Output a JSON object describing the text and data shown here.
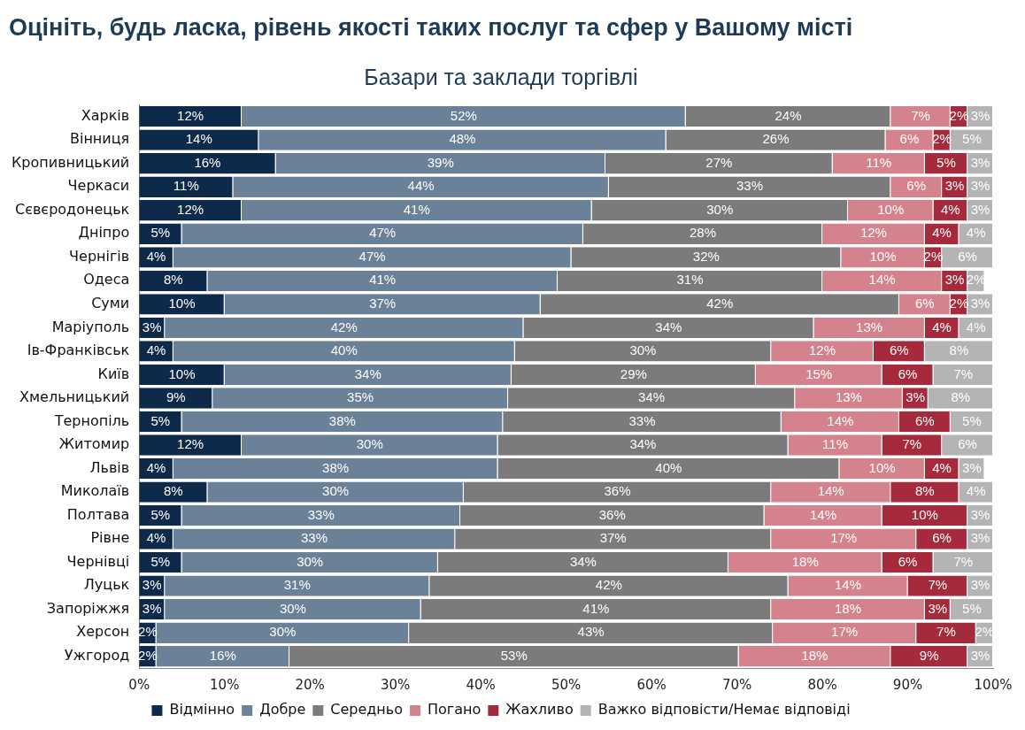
{
  "chart_data": {
    "type": "bar",
    "orientation": "horizontal",
    "stacked": true,
    "title": "Оцініть, будь ласка, рівень якості таких послуг та сфер у Вашому місті",
    "subtitle": "Базари та заклади торгівлі",
    "categories": [
      "Харків",
      "Вінниця",
      "Кропивницький",
      "Черкаси",
      "Сєвєродонецьк",
      "Дніпро",
      "Чернігів",
      "Одеса",
      "Суми",
      "Маріуполь",
      "Ів-Франківськ",
      "Київ",
      "Хмельницький",
      "Тернопіль",
      "Житомир",
      "Львів",
      "Миколаїв",
      "Полтава",
      "Рівне",
      "Чернівці",
      "Луцьк",
      "Запоріжжя",
      "Херсон",
      "Ужгород"
    ],
    "series": [
      {
        "name": "Відмінно",
        "color": "#0e2a4b",
        "values": [
          12,
          14,
          16,
          11,
          12,
          5,
          4,
          8,
          10,
          3,
          4,
          10,
          8.6,
          5,
          12,
          4,
          8,
          5,
          4,
          5,
          3,
          3,
          2,
          2
        ],
        "value_labels": [
          "12%",
          "14%",
          "16%",
          "11%",
          "12%",
          "5%",
          "4%",
          "8%",
          "10%",
          "3%",
          "4%",
          "10%",
          "9%",
          "5%",
          "12%",
          "4%",
          "8%",
          "5%",
          "4%",
          "5%",
          "3%",
          "3%",
          "2%",
          "2%"
        ]
      },
      {
        "name": "Добре",
        "color": "#6b8197",
        "values": [
          52,
          47.7,
          38.6,
          44,
          41,
          47,
          46.6,
          41,
          37,
          42,
          40,
          33.6,
          34.6,
          37.6,
          30,
          38,
          30,
          32.6,
          33,
          30,
          31,
          30,
          29.6,
          15.6
        ],
        "value_labels": [
          "52%",
          "48%",
          "39%",
          "44%",
          "41%",
          "47%",
          "47%",
          "41%",
          "37%",
          "42%",
          "40%",
          "34%",
          "35%",
          "38%",
          "30%",
          "38%",
          "30%",
          "33%",
          "33%",
          "30%",
          "31%",
          "30%",
          "30%",
          "16%"
        ]
      },
      {
        "name": "Середньо",
        "color": "#7b7b7b",
        "values": [
          24,
          25.7,
          26.6,
          33,
          30,
          28,
          31.6,
          31,
          42,
          34,
          30,
          28.6,
          33.6,
          32.6,
          34,
          40,
          36,
          35.6,
          37,
          34,
          42,
          41,
          42.6,
          52.6
        ],
        "value_labels": [
          "24%",
          "26%",
          "27%",
          "33%",
          "30%",
          "28%",
          "32%",
          "31%",
          "42%",
          "34%",
          "30%",
          "29%",
          "34%",
          "33%",
          "34%",
          "40%",
          "36%",
          "36%",
          "37%",
          "34%",
          "42%",
          "41%",
          "43%",
          "53%"
        ]
      },
      {
        "name": "Погано",
        "color": "#d4828b",
        "values": [
          7,
          5.6,
          10.8,
          6,
          10,
          12,
          9.8,
          14,
          6,
          13,
          12,
          14.8,
          12.6,
          13.8,
          11,
          10,
          14,
          13.8,
          17,
          18,
          14,
          18,
          16.8,
          17.8
        ],
        "value_labels": [
          "7%",
          "6%",
          "11%",
          "6%",
          "10%",
          "12%",
          "10%",
          "14%",
          "6%",
          "13%",
          "12%",
          "15%",
          "13%",
          "14%",
          "11%",
          "10%",
          "14%",
          "14%",
          "17%",
          "18%",
          "14%",
          "18%",
          "17%",
          "18%"
        ]
      },
      {
        "name": "Жахливо",
        "color": "#a42a3c",
        "values": [
          2,
          2,
          5,
          3,
          4,
          4,
          2,
          3,
          2,
          4,
          6,
          6,
          3,
          6,
          7,
          4,
          8,
          10,
          6,
          6,
          7,
          3,
          7,
          9
        ],
        "value_labels": [
          "2%",
          "2%",
          "5%",
          "3%",
          "4%",
          "4%",
          "2%",
          "3%",
          "2%",
          "4%",
          "6%",
          "6%",
          "3%",
          "6%",
          "7%",
          "4%",
          "8%",
          "10%",
          "6%",
          "6%",
          "7%",
          "3%",
          "7%",
          "9%"
        ]
      },
      {
        "name": "Важко відповісти/Немає відповіді",
        "color": "#b4b4b4",
        "values": [
          3,
          5,
          3,
          3,
          3,
          4,
          6,
          2,
          3,
          4,
          8,
          7,
          7.6,
          5,
          6,
          3,
          4,
          3,
          3,
          7,
          3,
          5,
          2,
          3
        ],
        "value_labels": [
          "3%",
          "5%",
          "3%",
          "3%",
          "3%",
          "4%",
          "6%",
          "2%",
          "3%",
          "4%",
          "8%",
          "7%",
          "8%",
          "5%",
          "6%",
          "3%",
          "4%",
          "3%",
          "3%",
          "7%",
          "3%",
          "5%",
          "2%",
          "3%"
        ]
      }
    ],
    "xlim": [
      0,
      100
    ],
    "xticks": [
      {
        "value": 0,
        "label": "0%"
      },
      {
        "value": 10,
        "label": "10%"
      },
      {
        "value": 20,
        "label": "20%"
      },
      {
        "value": 30,
        "label": "30%"
      },
      {
        "value": 40,
        "label": "40%"
      },
      {
        "value": 50,
        "label": "50%"
      },
      {
        "value": 60,
        "label": "60%"
      },
      {
        "value": 70,
        "label": "70%"
      },
      {
        "value": 80,
        "label": "80%"
      },
      {
        "value": 90,
        "label": "90%"
      },
      {
        "value": 100,
        "label": "100%"
      }
    ],
    "grid": false,
    "legend": "bottom"
  }
}
